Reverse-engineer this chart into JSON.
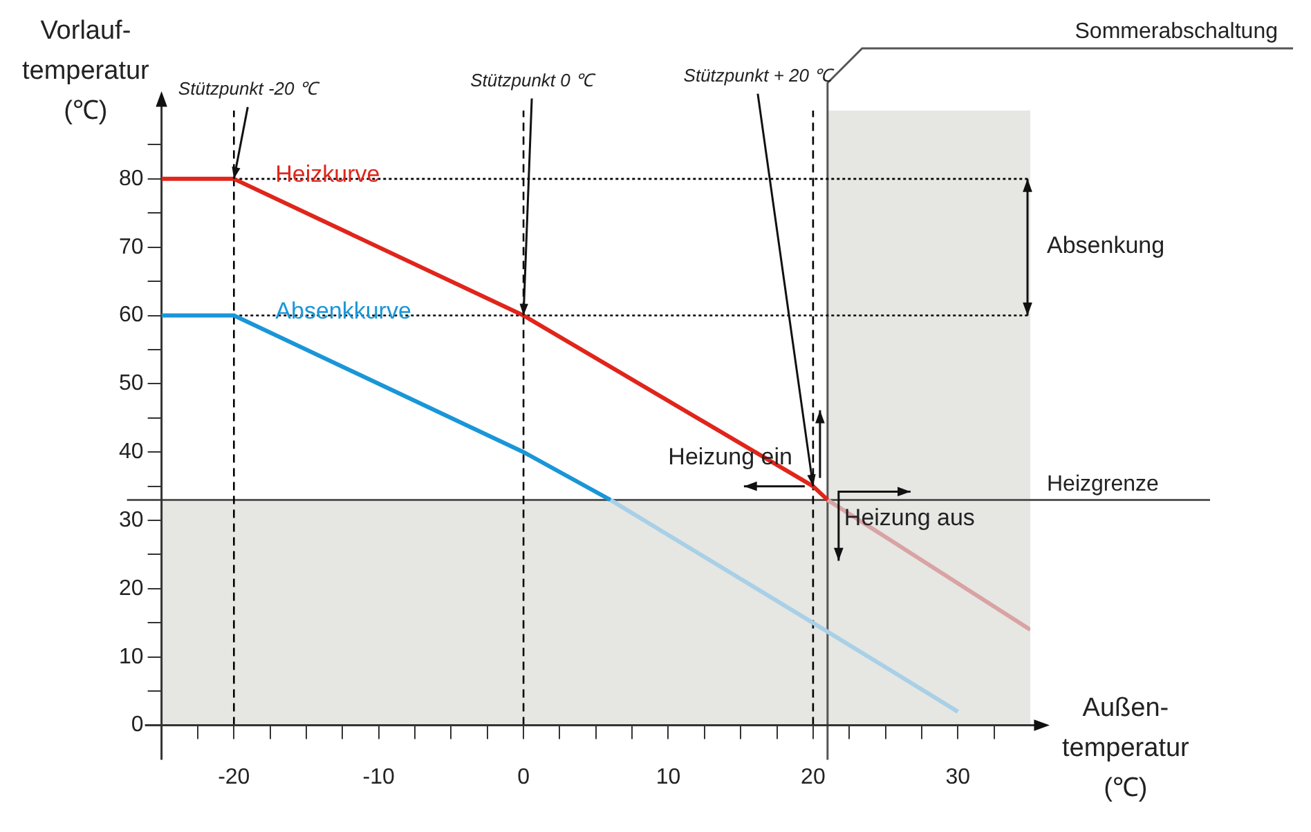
{
  "chart_data": {
    "type": "line",
    "xlabel": "Außen-\ntemperatur\n(℃)",
    "ylabel": "Vorlauf-\ntemperatur\n(℃)",
    "xlim": [
      -25,
      35
    ],
    "ylim": [
      0,
      90
    ],
    "xticks": [
      {
        "value": -22.5,
        "label": null
      },
      -20,
      {
        "value": -17.5,
        "label": null
      },
      {
        "value": -15,
        "label": null
      },
      {
        "value": -12.5,
        "label": null
      },
      -10,
      {
        "value": -7.5,
        "label": null
      },
      {
        "value": -5,
        "label": null
      },
      {
        "value": -2.5,
        "label": null
      },
      0,
      {
        "value": 2.5,
        "label": null
      },
      {
        "value": 5,
        "label": null
      },
      {
        "value": 7.5,
        "label": null
      },
      10,
      {
        "value": 12.5,
        "label": null
      },
      {
        "value": 15,
        "label": null
      },
      {
        "value": 17.5,
        "label": null
      },
      20,
      {
        "value": 22.5,
        "label": null
      },
      {
        "value": 25,
        "label": null
      },
      {
        "value": 27.5,
        "label": null
      },
      30,
      {
        "value": 32.5,
        "label": null
      }
    ],
    "yticks": [
      0,
      {
        "value": 5,
        "label": null
      },
      10,
      {
        "value": 15,
        "label": null
      },
      20,
      {
        "value": 25,
        "label": null
      },
      30,
      {
        "value": 35,
        "label": null
      },
      40,
      {
        "value": 45,
        "label": null
      },
      50,
      {
        "value": 55,
        "label": null
      },
      60,
      {
        "value": 65,
        "label": null
      },
      70,
      {
        "value": 75,
        "label": null
      },
      80,
      {
        "value": 85,
        "label": null
      }
    ],
    "grid": false,
    "legend": false,
    "marker": "none",
    "series": [
      {
        "name": "Heizkurve",
        "color": "#e0251b",
        "x": [
          -25,
          -20,
          0,
          20,
          21
        ],
        "values": [
          80,
          80,
          60,
          35,
          33
        ]
      },
      {
        "color": "#d9a3a3",
        "x": [
          21,
          35
        ],
        "values": [
          33,
          14
        ]
      },
      {
        "name": "Absenkkurve",
        "color": "#1a96d8",
        "x": [
          -25,
          -20,
          0,
          6
        ],
        "values": [
          60,
          60,
          40,
          33
        ]
      },
      {
        "color": "#a8d0e6",
        "x": [
          6,
          20,
          30
        ],
        "values": [
          33,
          15,
          2
        ]
      }
    ],
    "bands": [
      {
        "axis": "y",
        "from": 0,
        "to": 33,
        "label": null,
        "color": "#e6e6e3"
      },
      {
        "axis": "x",
        "from": 21,
        "to": 35,
        "label": null,
        "color": "#e6e6e3"
      }
    ],
    "ref_lines": [
      {
        "axis": "y",
        "value": 33,
        "label": "Heizgrenze",
        "color": "#555555",
        "line_style": "solid"
      },
      {
        "axis": "x",
        "value": 21,
        "label": "Sommerabschaltung",
        "color": "#555555",
        "line_style": "solid"
      },
      {
        "axis": "y",
        "value": 80,
        "label": null,
        "color": "#000000",
        "line_style": "dotted"
      },
      {
        "axis": "y",
        "value": 60,
        "label": null,
        "color": "#000000",
        "line_style": "dotted"
      },
      {
        "axis": "x",
        "value": -20,
        "label": null,
        "color": "#000000",
        "line_style": "dashed"
      },
      {
        "axis": "x",
        "value": 0,
        "label": null,
        "color": "#000000",
        "line_style": "dashed"
      },
      {
        "axis": "x",
        "value": 20,
        "label": null,
        "color": "#000000",
        "line_style": "dashed"
      }
    ],
    "annotations": [
      {
        "text": "Stützpunkt -20 ℃",
        "x": -20,
        "y": 80
      },
      {
        "text": "Stützpunkt 0 ℃",
        "x": 0,
        "y": 60
      },
      {
        "text": "Stützpunkt + 20 ℃",
        "x": 20,
        "y": 35
      },
      {
        "text": "Absenkung",
        "x": 35,
        "y": 70
      },
      {
        "text": "Heizung ein",
        "x": 20,
        "y": 35
      },
      "Heizung aus"
    ]
  }
}
